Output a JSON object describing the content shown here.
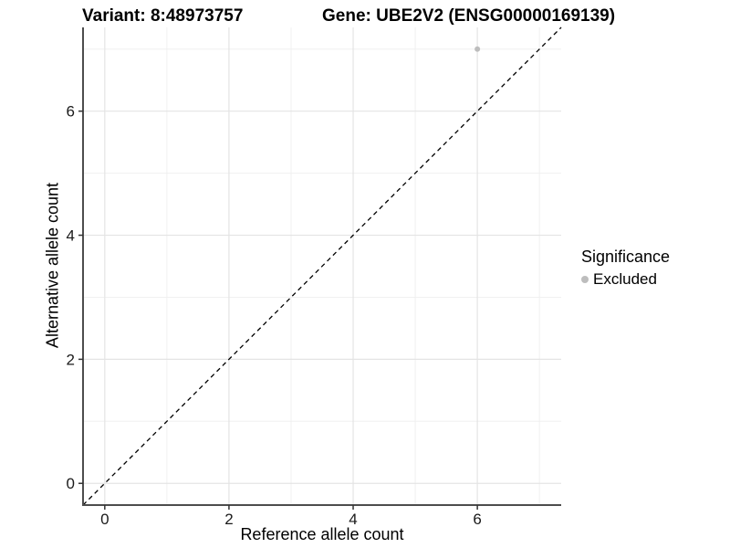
{
  "chart_data": {
    "type": "scatter",
    "title_left": "Variant: 8:48973757",
    "title_right": "Gene: UBE2V2 (ENSG00000169139)",
    "xlabel": "Reference allele count",
    "ylabel": "Alternative allele count",
    "xlim": [
      -0.35,
      7.35
    ],
    "ylim": [
      -0.35,
      7.35
    ],
    "x_ticks": [
      0,
      2,
      4,
      6
    ],
    "y_ticks": [
      0,
      2,
      4,
      6
    ],
    "x_minor_ticks": [
      1,
      3,
      5,
      7
    ],
    "y_minor_ticks": [
      1,
      3,
      5,
      7
    ],
    "grid": true,
    "series": [
      {
        "name": "Excluded",
        "color": "#bdbdbd",
        "points": [
          {
            "x": 6,
            "y": 7
          }
        ]
      }
    ],
    "reference_line": {
      "type": "identity",
      "style": "dashed",
      "from": [
        -0.35,
        -0.35
      ],
      "to": [
        7.35,
        7.35
      ],
      "color": "#000000"
    },
    "legend": {
      "title": "Significance",
      "position": "right",
      "entries": [
        {
          "label": "Excluded",
          "color": "#bdbdbd"
        }
      ]
    }
  },
  "colors": {
    "background": "#ffffff",
    "grid_major": "#e4e4e4",
    "grid_minor": "#f0f0f0",
    "axis_line": "#4d4d4d",
    "tick_mark": "#333333",
    "tick_label": "#1a1a1a",
    "point": "#bdbdbd"
  }
}
